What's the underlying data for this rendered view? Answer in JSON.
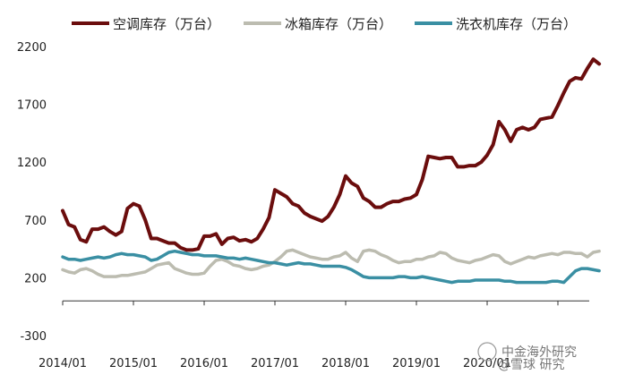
{
  "chart_data": {
    "type": "line",
    "title": "",
    "xlabel": "",
    "ylabel": "",
    "ylim": [
      -300,
      2200
    ],
    "y_ticks": [
      -300,
      200,
      700,
      1200,
      1700,
      2200
    ],
    "x_tick_labels": [
      "2014/01",
      "2015/01",
      "2016/01",
      "2017/01",
      "2018/01",
      "2019/01",
      "2020/01"
    ],
    "x_start": "2014/01",
    "grid": false,
    "legend_position": "top",
    "series": [
      {
        "name": "空调库存（万台）",
        "color": "#6b0d0d",
        "values": [
          780,
          660,
          640,
          530,
          510,
          620,
          620,
          640,
          600,
          570,
          600,
          800,
          840,
          820,
          700,
          540,
          540,
          520,
          500,
          500,
          460,
          440,
          440,
          450,
          560,
          560,
          580,
          490,
          540,
          550,
          520,
          530,
          510,
          540,
          620,
          720,
          960,
          930,
          900,
          840,
          820,
          760,
          730,
          710,
          690,
          730,
          810,
          920,
          1080,
          1020,
          990,
          890,
          860,
          810,
          810,
          840,
          860,
          860,
          880,
          890,
          920,
          1050,
          1250,
          1240,
          1230,
          1240,
          1240,
          1160,
          1160,
          1170,
          1170,
          1200,
          1260,
          1350,
          1550,
          1480,
          1380,
          1480,
          1500,
          1480,
          1500,
          1570,
          1580,
          1590,
          1690,
          1800,
          1900,
          1930,
          1920,
          2010,
          2090,
          2050
        ]
      },
      {
        "name": "冰箱库存（万台）",
        "color": "#bcbcb0",
        "values": [
          270,
          250,
          240,
          270,
          280,
          260,
          230,
          210,
          210,
          210,
          220,
          220,
          230,
          240,
          250,
          280,
          310,
          320,
          330,
          280,
          260,
          240,
          230,
          230,
          240,
          300,
          350,
          360,
          340,
          310,
          300,
          280,
          270,
          280,
          300,
          310,
          340,
          380,
          430,
          440,
          420,
          400,
          380,
          370,
          360,
          360,
          380,
          390,
          420,
          370,
          340,
          430,
          440,
          430,
          400,
          380,
          350,
          330,
          340,
          340,
          360,
          360,
          380,
          390,
          420,
          410,
          370,
          350,
          340,
          330,
          350,
          360,
          380,
          400,
          390,
          340,
          320,
          340,
          360,
          380,
          370,
          390,
          400,
          410,
          400,
          420,
          420,
          410,
          410,
          380,
          420,
          430
        ]
      },
      {
        "name": "洗衣机库存（万台）",
        "color": "#3a8fa3",
        "values": [
          380,
          360,
          360,
          350,
          360,
          370,
          380,
          370,
          380,
          400,
          410,
          400,
          400,
          390,
          380,
          350,
          360,
          390,
          420,
          430,
          420,
          410,
          400,
          400,
          390,
          390,
          390,
          380,
          370,
          370,
          360,
          370,
          360,
          350,
          340,
          330,
          330,
          320,
          310,
          320,
          330,
          320,
          320,
          310,
          300,
          300,
          300,
          300,
          290,
          270,
          240,
          210,
          200,
          200,
          200,
          200,
          200,
          210,
          210,
          200,
          200,
          210,
          200,
          190,
          180,
          170,
          160,
          170,
          170,
          170,
          180,
          180,
          180,
          180,
          180,
          170,
          170,
          160,
          160,
          160,
          160,
          160,
          160,
          170,
          170,
          160,
          210,
          260,
          280,
          280,
          270,
          260
        ]
      }
    ]
  },
  "watermark": {
    "text": "中金海外研究",
    "subtext": "@雪球 研究"
  }
}
